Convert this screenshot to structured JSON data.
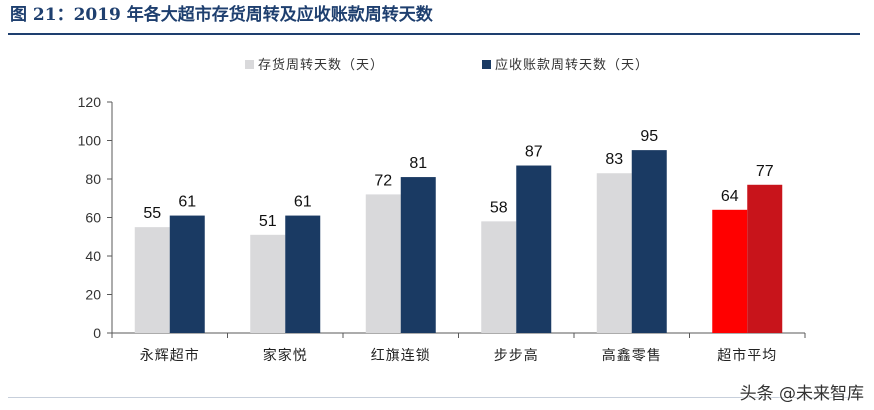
{
  "figure": {
    "title": "图 21：2019 年各大超市存货周转及应收账款周转天数",
    "watermark": "头条 @未来智库"
  },
  "colors": {
    "inventory": "#d9d9db",
    "receivable": "#1a3a63",
    "highlight_inventory": "#ff0000",
    "highlight_receivable": "#c8141b",
    "axis": "#595959",
    "title": "#1e3f6f"
  },
  "chart_data": {
    "type": "bar",
    "title": "",
    "xlabel": "",
    "ylabel": "",
    "ylim": [
      0,
      120
    ],
    "yticks": [
      0,
      20,
      40,
      60,
      80,
      100,
      120
    ],
    "grid": false,
    "legend_position": "top",
    "categories": [
      "永辉超市",
      "家家悦",
      "红旗连锁",
      "步步高",
      "高鑫零售",
      "超市平均"
    ],
    "series": [
      {
        "name": "存货周转天数（天）",
        "values": [
          55,
          51,
          72,
          58,
          83,
          64
        ]
      },
      {
        "name": "应收账款周转天数（天）",
        "values": [
          61,
          61,
          81,
          87,
          95,
          77
        ]
      }
    ],
    "highlight_category": "超市平均"
  }
}
